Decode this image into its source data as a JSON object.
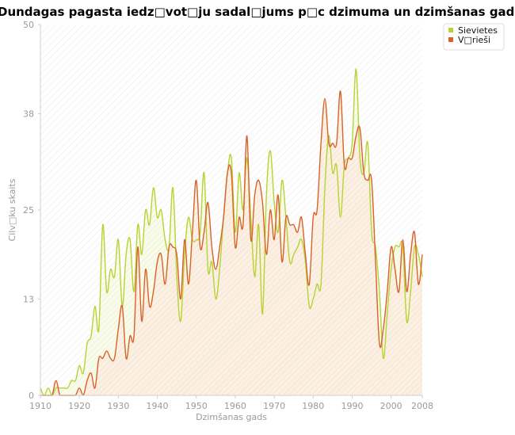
{
  "chart_data": {
    "type": "area",
    "title": "Dundagas pagasta iedz□vot□ju sadal□jums p□c dzimuma un dzimšanas gada",
    "xlabel": "Dzimšanas gads",
    "ylabel": "Cilv□ku skaits",
    "xlim": [
      1910,
      2008
    ],
    "ylim": [
      0,
      50
    ],
    "x_ticks": [
      "1910",
      "1920",
      "1930",
      "1940",
      "1950",
      "1960",
      "1970",
      "1980",
      "1990",
      "2000",
      "2008"
    ],
    "y_ticks": [
      "0",
      "13",
      "25",
      "38",
      "50"
    ],
    "grid": false,
    "legend_position": "top-right",
    "x": [
      1910,
      1911,
      1912,
      1913,
      1914,
      1915,
      1916,
      1917,
      1918,
      1919,
      1920,
      1921,
      1922,
      1923,
      1924,
      1925,
      1926,
      1927,
      1928,
      1929,
      1930,
      1931,
      1932,
      1933,
      1934,
      1935,
      1936,
      1937,
      1938,
      1939,
      1940,
      1941,
      1942,
      1943,
      1944,
      1945,
      1946,
      1947,
      1948,
      1949,
      1950,
      1951,
      1952,
      1953,
      1954,
      1955,
      1956,
      1957,
      1958,
      1959,
      1960,
      1961,
      1962,
      1963,
      1964,
      1965,
      1966,
      1967,
      1968,
      1969,
      1970,
      1971,
      1972,
      1973,
      1974,
      1975,
      1976,
      1977,
      1978,
      1979,
      1980,
      1981,
      1982,
      1983,
      1984,
      1985,
      1986,
      1987,
      1988,
      1989,
      1990,
      1991,
      1992,
      1993,
      1994,
      1995,
      1996,
      1997,
      1998,
      1999,
      2000,
      2001,
      2002,
      2003,
      2004,
      2005,
      2006,
      2007,
      2008
    ],
    "series": [
      {
        "name": "Sievietes",
        "color": "#b7d334",
        "values": [
          1,
          0,
          1,
          0,
          1,
          1,
          1,
          1,
          2,
          2,
          4,
          3,
          7,
          8,
          12,
          9,
          23,
          14,
          17,
          16,
          21,
          12,
          19,
          21,
          14,
          23,
          19,
          25,
          23,
          28,
          24,
          25,
          21,
          20,
          28,
          16,
          10,
          19,
          24,
          21,
          21,
          22,
          30,
          17,
          18,
          13,
          17,
          24,
          30,
          32,
          22,
          30,
          25,
          32,
          24,
          16,
          23,
          11,
          27,
          33,
          26,
          22,
          29,
          24,
          18,
          19,
          20,
          21,
          18,
          12,
          13,
          15,
          15,
          28,
          35,
          30,
          31,
          24,
          31,
          32,
          34,
          44,
          32,
          30,
          34,
          22,
          20,
          14,
          5,
          11,
          17,
          20,
          20,
          20,
          10,
          14,
          20,
          19,
          16
        ]
      },
      {
        "name": "V□rieši",
        "color": "#d9622b",
        "values": [
          0,
          0,
          0,
          0,
          2,
          0,
          0,
          0,
          0,
          0,
          1,
          0,
          2,
          3,
          1,
          5,
          5,
          6,
          5,
          5,
          9,
          12,
          5,
          8,
          8,
          20,
          10,
          17,
          12,
          14,
          18,
          19,
          15,
          20,
          20,
          19,
          13,
          21,
          15,
          22,
          29,
          20,
          22,
          26,
          20,
          17,
          20,
          24,
          30,
          30,
          20,
          24,
          23,
          35,
          21,
          27,
          29,
          26,
          19,
          25,
          21,
          27,
          18,
          24,
          23,
          23,
          22,
          24,
          19,
          15,
          24,
          25,
          34,
          40,
          34,
          34,
          34,
          41,
          31,
          32,
          32,
          35,
          36,
          30,
          29,
          29,
          18,
          7,
          9,
          14,
          20,
          17,
          14,
          21,
          14,
          19,
          22,
          15,
          19
        ]
      }
    ]
  }
}
